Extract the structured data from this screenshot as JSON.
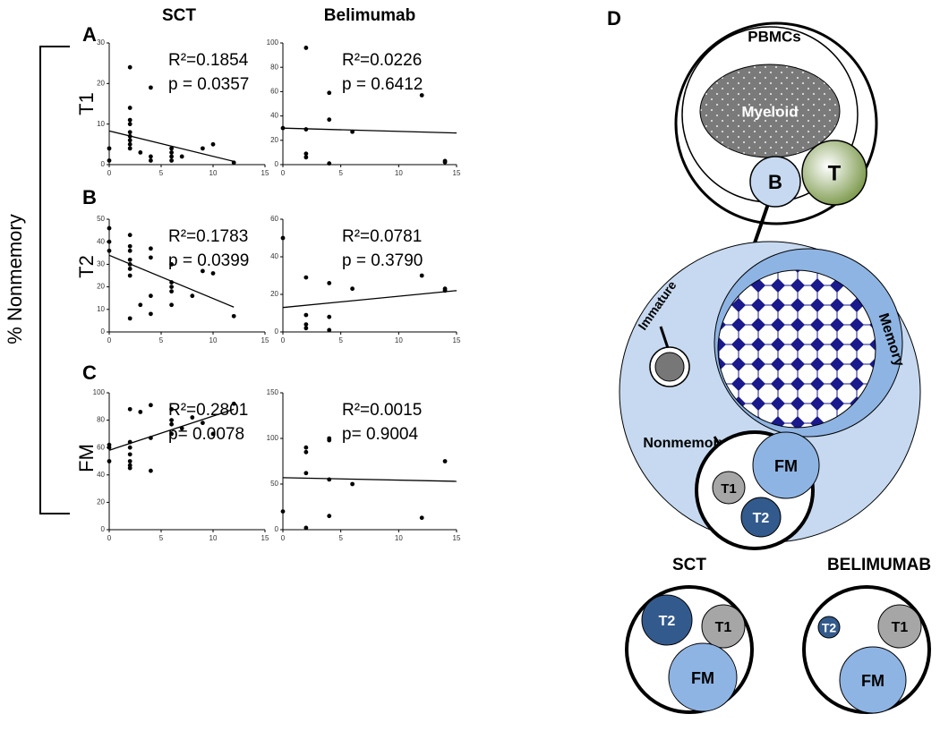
{
  "chart_data": [
    {
      "type": "scatter",
      "color": "#000000",
      "x": [
        0,
        0,
        2,
        2,
        2,
        2,
        2,
        2,
        2,
        2,
        2,
        3,
        4,
        4,
        4,
        6,
        6,
        6,
        6,
        7,
        9,
        10,
        12
      ],
      "values": [
        1,
        4,
        24,
        14,
        11,
        10,
        8,
        7,
        6,
        5,
        4,
        3,
        19,
        2,
        1,
        4,
        3,
        2,
        1,
        2,
        4,
        5,
        0.5
      ],
      "fit": {
        "x": [
          0,
          12
        ],
        "values": [
          8.3,
          0.8
        ]
      },
      "annotations": [
        "R²=0.1854",
        "p = 0.0357"
      ],
      "xlim": [
        0,
        15
      ],
      "xticks": [
        0,
        5,
        10,
        15
      ],
      "ylim": [
        0,
        30
      ],
      "yticks": [
        0,
        10,
        20,
        30
      ]
    },
    {
      "type": "scatter",
      "color": "#000000",
      "x": [
        0,
        2,
        2,
        2,
        2,
        4,
        4,
        4,
        6,
        12,
        14,
        14
      ],
      "values": [
        30,
        96,
        29,
        9,
        6,
        59,
        37,
        1,
        27,
        57,
        3,
        2
      ],
      "fit": {
        "x": [
          0,
          15
        ],
        "values": [
          30,
          26
        ]
      },
      "annotations": [
        "R²=0.0226",
        "p = 0.6412"
      ],
      "xlim": [
        0,
        15
      ],
      "xticks": [
        0,
        5,
        10,
        15
      ],
      "ylim": [
        0,
        100
      ],
      "yticks": [
        0,
        20,
        40,
        60,
        80,
        100
      ]
    },
    {
      "type": "scatter",
      "color": "#000000",
      "x": [
        0,
        0,
        0,
        2,
        2,
        2,
        2,
        2,
        2,
        2,
        2,
        3,
        4,
        4,
        4,
        4,
        6,
        6,
        6,
        6,
        6,
        8,
        9,
        10,
        12
      ],
      "values": [
        46,
        40,
        36,
        43,
        38,
        36,
        32,
        30,
        28,
        25,
        6,
        12,
        37,
        33,
        16,
        8,
        30,
        22,
        20,
        18,
        12,
        16,
        27,
        26,
        7
      ],
      "fit": {
        "x": [
          0,
          12
        ],
        "values": [
          34,
          11
        ]
      },
      "annotations": [
        "R²=0.1783",
        "p = 0.0399"
      ],
      "xlim": [
        0,
        15
      ],
      "xticks": [
        0,
        5,
        10,
        15
      ],
      "ylim": [
        0,
        50
      ],
      "yticks": [
        0,
        10,
        20,
        30,
        40,
        50
      ]
    },
    {
      "type": "scatter",
      "color": "#000000",
      "x": [
        0,
        2,
        2,
        2,
        2,
        4,
        4,
        4,
        6,
        12,
        14,
        14
      ],
      "values": [
        50,
        29,
        9,
        4,
        2,
        26,
        8,
        1,
        23,
        30,
        22,
        23
      ],
      "fit": {
        "x": [
          0,
          15
        ],
        "values": [
          13,
          22
        ]
      },
      "annotations": [
        "R²=0.0781",
        "p = 0.3790"
      ],
      "xlim": [
        0,
        15
      ],
      "xticks": [
        0,
        5,
        10,
        15
      ],
      "ylim": [
        0,
        60
      ],
      "yticks": [
        0,
        20,
        40,
        60
      ]
    },
    {
      "type": "scatter",
      "color": "#000000",
      "x": [
        0,
        0,
        0,
        2,
        2,
        2,
        2,
        2,
        2,
        2,
        3,
        4,
        4,
        4,
        6,
        6,
        6,
        6,
        7,
        8,
        9,
        10,
        12
      ],
      "values": [
        62,
        60,
        50,
        88,
        64,
        60,
        55,
        50,
        47,
        45,
        86,
        91,
        67,
        43,
        88,
        80,
        77,
        70,
        74,
        82,
        78,
        70,
        92
      ],
      "fit": {
        "x": [
          0,
          12
        ],
        "values": [
          58,
          88
        ]
      },
      "annotations": [
        "R²=0.2801",
        "p= 0.0078"
      ],
      "xlim": [
        0,
        15
      ],
      "xticks": [
        0,
        5,
        10,
        15
      ],
      "ylim": [
        0,
        100
      ],
      "yticks": [
        0,
        20,
        40,
        60,
        80,
        100
      ]
    },
    {
      "type": "scatter",
      "color": "#000000",
      "x": [
        0,
        2,
        2,
        2,
        2,
        4,
        4,
        4,
        4,
        6,
        12,
        14
      ],
      "values": [
        20,
        90,
        85,
        62,
        2,
        100,
        98,
        55,
        15,
        50,
        13,
        75
      ],
      "fit": {
        "x": [
          0,
          15
        ],
        "values": [
          57,
          53
        ]
      },
      "annotations": [
        "R²=0.0015",
        "p= 0.9004"
      ],
      "xlim": [
        0,
        15
      ],
      "xticks": [
        0,
        5,
        10,
        15
      ],
      "ylim": [
        0,
        150
      ],
      "yticks": [
        0,
        50,
        100,
        150
      ]
    }
  ],
  "figure": {
    "panels": [
      "A",
      "B",
      "C",
      "D"
    ],
    "columns": [
      "SCT",
      "Belimumab"
    ],
    "rows": [
      "T1",
      "T2",
      "FM"
    ],
    "y_label": "% Nonmemory"
  },
  "diagram": {
    "pbmcs": "PBMCs",
    "myeloid": "Myeloid",
    "b": "B",
    "t": "T",
    "immature": "Immature",
    "memory": "Memory",
    "nonmemory": "Nonmemory",
    "fm": "FM",
    "t1": "T1",
    "t2": "T2",
    "sct": {
      "title": "SCT",
      "t2": "T2",
      "t1": "T1",
      "fm": "FM"
    },
    "belimumab": {
      "title": "BELIMUMAB",
      "t2": "T2",
      "t1": "T1",
      "fm": "FM"
    }
  }
}
